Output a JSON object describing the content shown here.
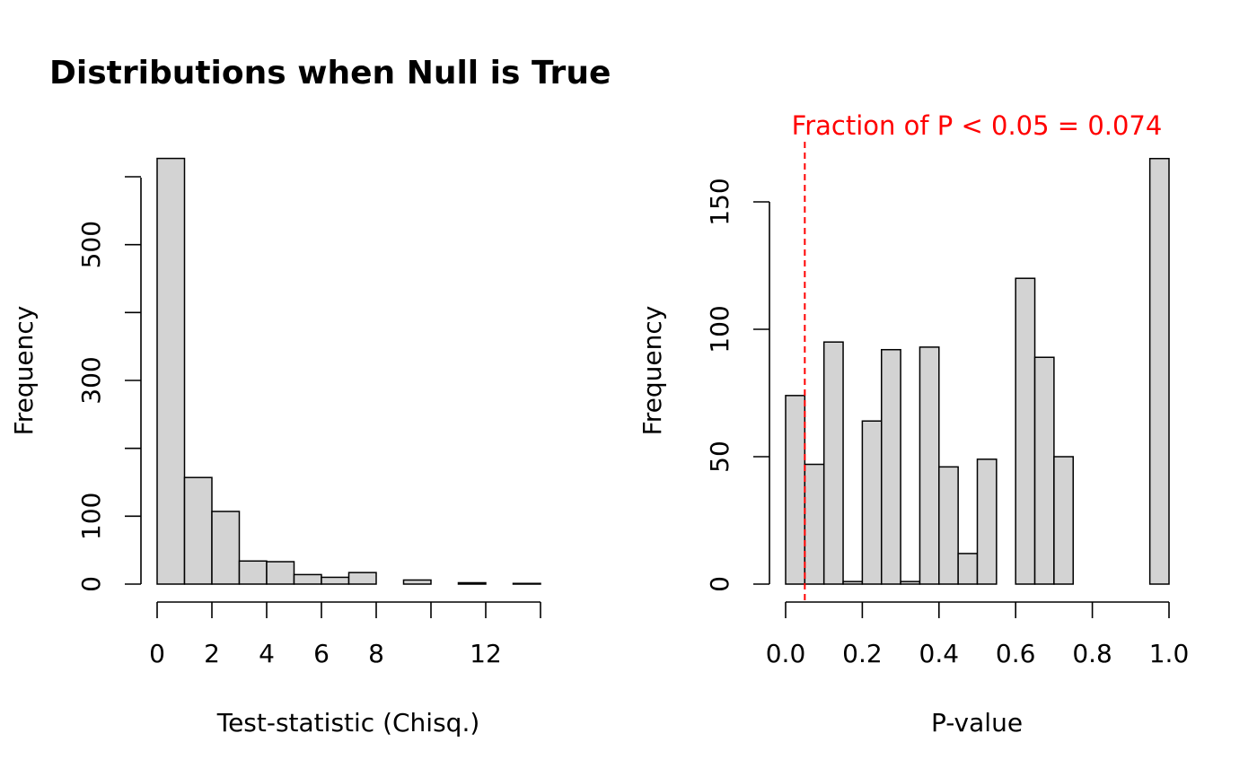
{
  "title": "Distributions when Null is True",
  "colors": {
    "bar_fill": "#d3d3d3",
    "bar_stroke": "#000000",
    "annotation": "#ff0000"
  },
  "chart_data": [
    {
      "type": "bar",
      "subtype": "histogram",
      "title": "Distributions when Null is True",
      "xlabel": "Test-statistic (Chisq.)",
      "ylabel": "Frequency",
      "bin_edges": [
        0,
        1,
        2,
        3,
        4,
        5,
        6,
        7,
        8,
        9,
        10,
        11,
        12,
        13,
        14
      ],
      "values": [
        627,
        157,
        107,
        34,
        33,
        14,
        10,
        17,
        0,
        6,
        0,
        2,
        0,
        1
      ],
      "xlim": [
        0,
        14
      ],
      "ylim": [
        0,
        600
      ],
      "xticks": [
        0,
        2,
        4,
        6,
        8,
        10,
        12,
        14
      ],
      "xtick_labels": [
        "0",
        "2",
        "4",
        "6",
        "8",
        "",
        "12",
        ""
      ],
      "yticks": [
        0,
        100,
        200,
        300,
        400,
        500,
        600
      ],
      "ytick_labels": [
        "0",
        "100",
        "",
        "300",
        "",
        "500",
        ""
      ],
      "grid": false
    },
    {
      "type": "bar",
      "subtype": "histogram",
      "xlabel": "P-value",
      "ylabel": "Frequency",
      "bin_edges": [
        0.0,
        0.05,
        0.1,
        0.15,
        0.2,
        0.25,
        0.3,
        0.35,
        0.4,
        0.45,
        0.5,
        0.55,
        0.6,
        0.65,
        0.7,
        0.75,
        0.8,
        0.85,
        0.9,
        0.95,
        1.0
      ],
      "values": [
        74,
        47,
        95,
        1,
        64,
        92,
        1,
        93,
        46,
        12,
        49,
        0,
        120,
        89,
        50,
        0,
        0,
        0,
        0,
        167
      ],
      "xlim": [
        0,
        1
      ],
      "ylim": [
        0,
        150
      ],
      "xticks": [
        0.0,
        0.2,
        0.4,
        0.6,
        0.8,
        1.0
      ],
      "xtick_labels": [
        "0.0",
        "0.2",
        "0.4",
        "0.6",
        "0.8",
        "1.0"
      ],
      "yticks": [
        0,
        50,
        100,
        150
      ],
      "ytick_labels": [
        "0",
        "50",
        "100",
        "150"
      ],
      "reference_line": {
        "x": 0.05,
        "style": "dashed",
        "color": "#ff0000"
      },
      "annotation": "Fraction of P < 0.05 = 0.074",
      "grid": false
    }
  ]
}
